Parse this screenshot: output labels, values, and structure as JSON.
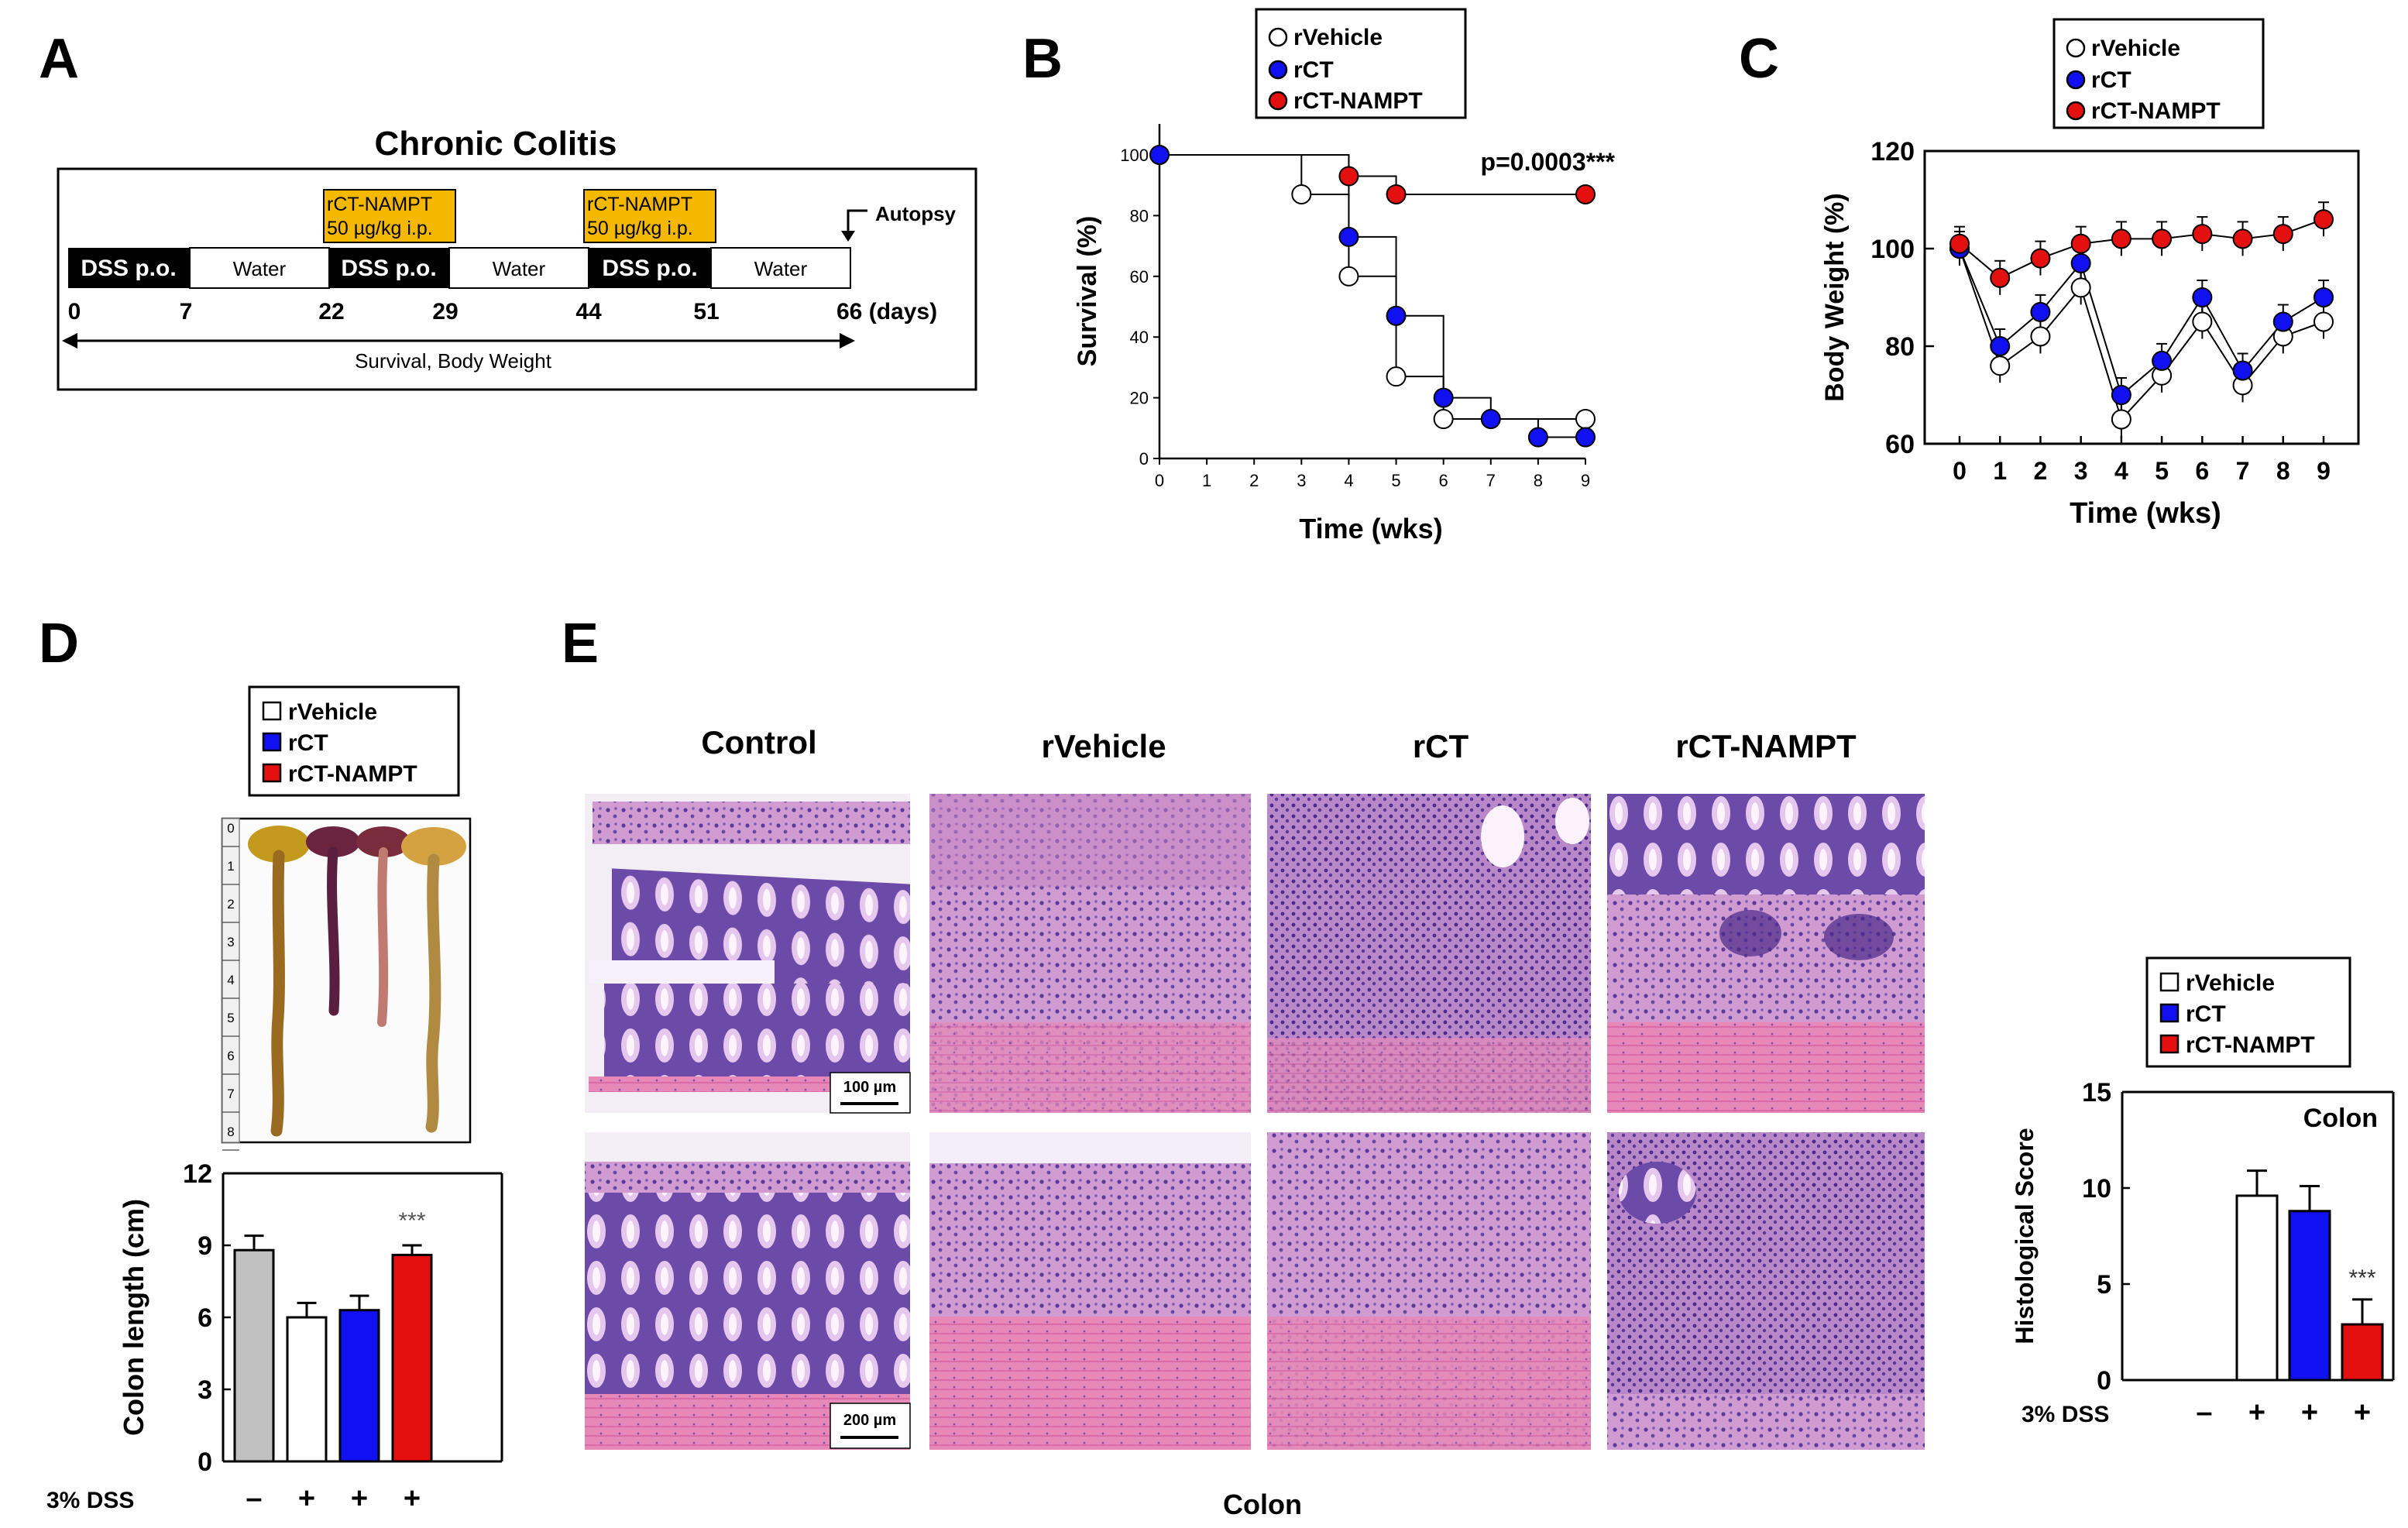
{
  "panel_labels": {
    "a": "A",
    "b": "B",
    "c": "C",
    "d": "D",
    "e": "E"
  },
  "panelA": {
    "title": "Chronic Colitis",
    "treat1_line1": "rCT-NAMPT",
    "treat1_line2": "50 µg/kg i.p.",
    "treat2_line1": "rCT-NAMPT",
    "treat2_line2": "50 µg/kg i.p.",
    "autopsy": "Autopsy",
    "blocks": [
      "DSS p.o.",
      "Water",
      "DSS p.o.",
      "Water",
      "DSS p.o.",
      "Water"
    ],
    "days": [
      "0",
      "7",
      "22",
      "29",
      "44",
      "51",
      "66 (days)"
    ],
    "arrow_label": "Survival, Body Weight"
  },
  "legend": {
    "vehicle": "rVehicle",
    "rct": "rCT",
    "nampt": "rCT-NAMPT"
  },
  "colors": {
    "vehicle": "#ffffff",
    "rct": "#1010f0",
    "nampt": "#e41010",
    "control_bar": "#c0c0c0",
    "treat_box": "#f5b800"
  },
  "chart_data": [
    {
      "panel": "B",
      "type": "line",
      "xlabel": "Time (wks)",
      "ylabel": "Survival (%)",
      "xlim": [
        0,
        9
      ],
      "ylim": [
        0,
        100
      ],
      "xticks": [
        "0",
        "1",
        "2",
        "3",
        "4",
        "5",
        "6",
        "7",
        "8",
        "9"
      ],
      "yticks": [
        "0",
        "20",
        "40",
        "60",
        "80",
        "100"
      ],
      "annotation": "p=0.0003***",
      "series": [
        {
          "name": "rVehicle",
          "x": [
            0,
            3,
            4,
            5,
            6,
            9
          ],
          "y": [
            100,
            87,
            60,
            27,
            13,
            13
          ]
        },
        {
          "name": "rCT",
          "x": [
            0,
            4,
            5,
            6,
            7,
            8,
            9
          ],
          "y": [
            100,
            73,
            47,
            20,
            13,
            7,
            7
          ]
        },
        {
          "name": "rCT-NAMPT",
          "x": [
            0,
            4,
            5,
            9
          ],
          "y": [
            100,
            93,
            87,
            87
          ]
        }
      ]
    },
    {
      "panel": "C",
      "type": "line",
      "xlabel": "Time (wks)",
      "ylabel": "Body Weight (%)",
      "xlim": [
        0,
        9
      ],
      "ylim": [
        60,
        120
      ],
      "xticks": [
        "0",
        "1",
        "2",
        "3",
        "4",
        "5",
        "6",
        "7",
        "8",
        "9"
      ],
      "yticks": [
        "60",
        "80",
        "100",
        "120"
      ],
      "series": [
        {
          "name": "rVehicle",
          "x": [
            0,
            1,
            2,
            3,
            4,
            5,
            6,
            7,
            8,
            9
          ],
          "y": [
            100,
            76,
            82,
            92,
            65,
            74,
            85,
            72,
            82,
            85
          ]
        },
        {
          "name": "rCT",
          "x": [
            0,
            1,
            2,
            3,
            4,
            5,
            6,
            7,
            8,
            9
          ],
          "y": [
            100,
            80,
            87,
            97,
            70,
            77,
            90,
            75,
            85,
            90
          ]
        },
        {
          "name": "rCT-NAMPT",
          "x": [
            0,
            1,
            2,
            3,
            4,
            5,
            6,
            7,
            8,
            9
          ],
          "y": [
            101,
            94,
            98,
            101,
            102,
            102,
            103,
            102,
            103,
            106
          ]
        }
      ]
    },
    {
      "panel": "D",
      "type": "bar",
      "ylabel": "Colon length (cm)",
      "ylim": [
        0,
        12
      ],
      "yticks": [
        "0",
        "3",
        "6",
        "9",
        "12"
      ],
      "categories": [
        "Control",
        "rVehicle",
        "rCT",
        "rCT-NAMPT"
      ],
      "values": [
        8.8,
        6.0,
        6.3,
        8.6
      ],
      "errors": [
        0.6,
        0.6,
        0.6,
        0.4
      ],
      "annotation": "***",
      "dss_label": "3% DSS",
      "dss_marks": [
        "–",
        "+",
        "+",
        "+"
      ]
    },
    {
      "panel": "E-right",
      "type": "bar",
      "ylabel": "Histological Score",
      "inner_label": "Colon",
      "ylim": [
        0,
        15
      ],
      "yticks": [
        "0",
        "5",
        "10",
        "15"
      ],
      "categories": [
        "Control",
        "rVehicle",
        "rCT",
        "rCT-NAMPT"
      ],
      "values": [
        0,
        9.6,
        8.8,
        2.9
      ],
      "errors": [
        0,
        1.3,
        1.3,
        1.3
      ],
      "annotation": "***",
      "dss_label": "3% DSS",
      "dss_marks": [
        "–",
        "+",
        "+",
        "+"
      ]
    }
  ],
  "panelD_ruler": [
    "0",
    "1",
    "2",
    "3",
    "4",
    "5",
    "6",
    "7",
    "8"
  ],
  "panelE": {
    "columns": [
      "Control",
      "rVehicle",
      "rCT",
      "rCT-NAMPT"
    ],
    "scale_top": "100 µm",
    "scale_bottom": "200 µm",
    "footer": "Colon"
  }
}
